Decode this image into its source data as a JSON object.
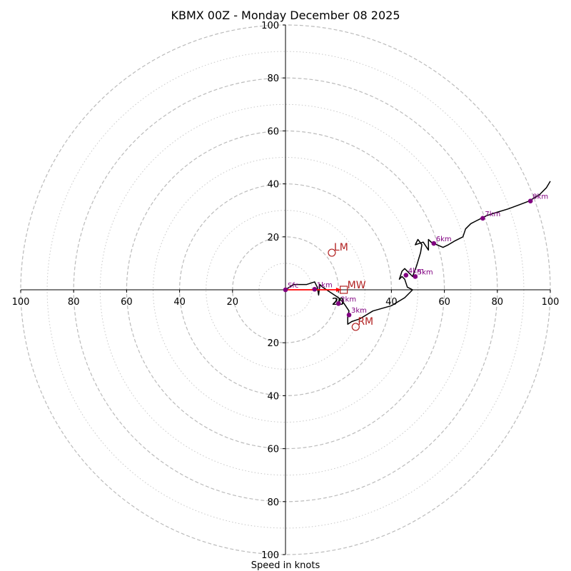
{
  "chart_data": {
    "type": "line",
    "subtype": "hodograph",
    "title": "KBMX 00Z - Monday December 08 2025",
    "xlabel": "Speed in knots",
    "ylabel": "",
    "range": [
      -100,
      100
    ],
    "grid": true,
    "major_rings": [
      20,
      40,
      60,
      80,
      100
    ],
    "minor_rings": [
      10,
      30,
      50,
      70,
      90
    ],
    "tick_labels": {
      "left": [
        "100",
        "80",
        "60",
        "40",
        "20"
      ],
      "right": [
        "20",
        "40",
        "60",
        "80",
        "100"
      ],
      "top": [
        "100",
        "80",
        "60",
        "40",
        "20"
      ],
      "bottom": [
        "20",
        "40",
        "60",
        "80",
        "100"
      ]
    },
    "inner_label": "20",
    "trace": {
      "u": [
        0,
        3,
        8,
        11,
        12,
        12.5,
        13,
        14,
        17,
        20,
        22,
        24,
        23.5,
        23.5,
        25,
        28,
        33,
        40,
        45,
        48,
        46,
        45,
        44,
        43,
        44,
        45,
        47,
        48,
        49.5,
        51,
        51.5,
        50,
        49,
        52,
        54,
        54,
        55,
        56,
        59.5,
        61.5,
        64,
        67,
        68,
        70,
        72,
        74,
        76,
        79,
        84,
        88,
        92,
        96,
        98.5,
        100
      ],
      "v": [
        0,
        2,
        2,
        3,
        1,
        -2,
        2,
        1,
        -1,
        -3,
        -5,
        -8,
        -10,
        -13,
        -12,
        -11,
        -8,
        -6,
        -3,
        0,
        1,
        4,
        5,
        4,
        7,
        8,
        6,
        5,
        9,
        14,
        17,
        19,
        17,
        18,
        15,
        19,
        18,
        17.5,
        16,
        17,
        18.5,
        20,
        23,
        25,
        26,
        27,
        28,
        29,
        30.5,
        32,
        33.5,
        36,
        38.5,
        41
      ]
    },
    "height_markers": [
      {
        "label": "Sfc",
        "u": 0,
        "v": 0
      },
      {
        "label": "1km",
        "u": 11,
        "v": 0.2
      },
      {
        "label": "2km",
        "u": 20,
        "v": -5.2
      },
      {
        "label": "3km",
        "u": 24,
        "v": -9.5
      },
      {
        "label": "4km",
        "u": 45.5,
        "v": 5.5
      },
      {
        "label": "5km",
        "u": 49,
        "v": 5
      },
      {
        "label": "6km",
        "u": 56,
        "v": 17.5
      },
      {
        "label": "7km",
        "u": 74.5,
        "v": 27
      },
      {
        "label": "8km",
        "u": 92.5,
        "v": 33.5
      }
    ],
    "storm_motion": {
      "mean_wind": {
        "label": "MW",
        "u": 22,
        "v": 0,
        "marker": "square"
      },
      "left_mover": {
        "label": "LM",
        "u": 17.5,
        "v": 14,
        "marker": "circle"
      },
      "right_mover": {
        "label": "RM",
        "u": 26.5,
        "v": -14,
        "marker": "circle"
      }
    },
    "shear_vector": {
      "from": [
        0,
        0
      ],
      "to": [
        21,
        0
      ]
    },
    "colors": {
      "trace": "#000000",
      "height_markers": "#800080",
      "storm_motion": "#b22222",
      "shear_vector": "#ff0000",
      "grid": "#bbbbbb"
    }
  }
}
